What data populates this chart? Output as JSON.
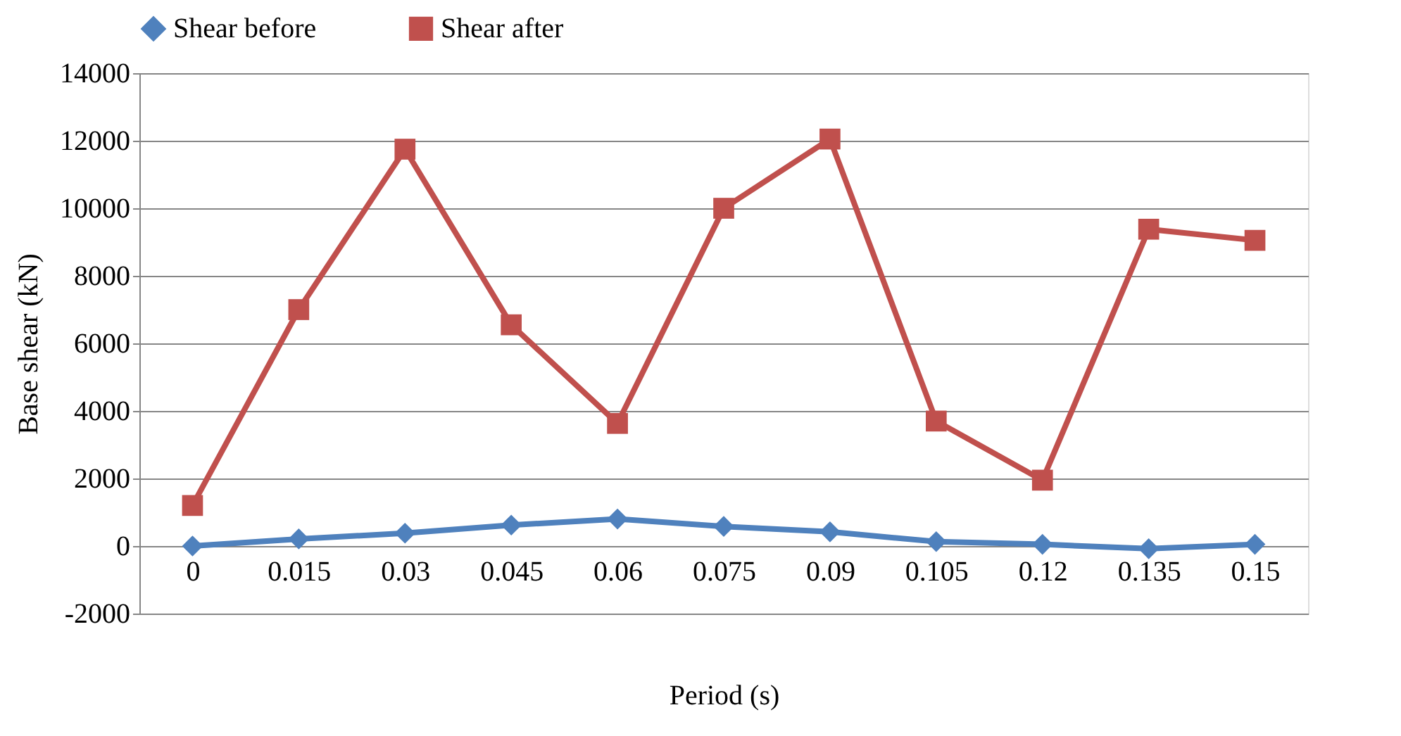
{
  "chart_data": {
    "type": "line",
    "xlabel": "Period (s)",
    "ylabel": "Base shear (kN)",
    "categories": [
      "0",
      "0.015",
      "0.03",
      "0.045",
      "0.06",
      "0.075",
      "0.09",
      "0.105",
      "0.12",
      "0.135",
      "0.15"
    ],
    "series": [
      {
        "name": "Shear before",
        "color": "#4f81bd",
        "marker": "diamond",
        "values": [
          0,
          210,
          380,
          620,
          800,
          580,
          420,
          130,
          50,
          -80,
          50
        ]
      },
      {
        "name": "Shear after",
        "color": "#c0504d",
        "marker": "square",
        "values": [
          1200,
          7000,
          11750,
          6550,
          3630,
          10000,
          12050,
          3700,
          1950,
          9380,
          9050
        ]
      }
    ],
    "ylim": [
      -2000,
      14000
    ],
    "yticks": [
      -2000,
      0,
      2000,
      4000,
      6000,
      8000,
      10000,
      12000,
      14000
    ],
    "grid": "y",
    "legend": "top",
    "line_style": "solid"
  }
}
